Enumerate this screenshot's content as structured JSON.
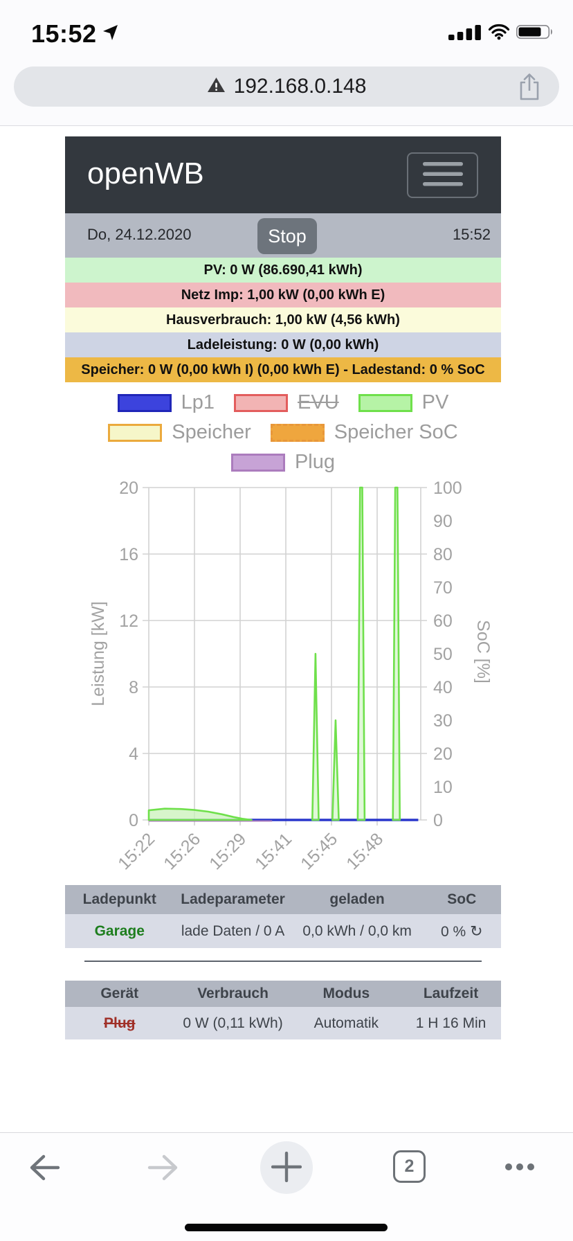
{
  "status_bar": {
    "time": "15:52"
  },
  "address_bar": {
    "url": "192.168.0.148"
  },
  "header": {
    "app_title": "openWB"
  },
  "topbar": {
    "date": "Do, 24.12.2020",
    "stop_label": "Stop",
    "time": "15:52"
  },
  "status_rows": [
    {
      "id": "pv",
      "text": "PV: 0 W (86.690,41 kWh)",
      "bg": "#cdf4cd"
    },
    {
      "id": "netz",
      "text": "Netz Imp: 1,00 kW (0,00 kWh E)",
      "bg": "#f1babe"
    },
    {
      "id": "hausverbrauch",
      "text": "Hausverbrauch: 1,00 kW (4,56 kWh)",
      "bg": "#fbfbdb"
    },
    {
      "id": "ladeleistung",
      "text": "Ladeleistung: 0 W (0,00 kWh)",
      "bg": "#ced4e4"
    },
    {
      "id": "speicher",
      "text": "Speicher: 0 W (0,00 kWh I) (0,00 kWh E) - Ladestand: 0 % SoC",
      "bg": "#edb845"
    }
  ],
  "legend": {
    "rows": [
      [
        {
          "label": "Lp1",
          "fill": "#3c43dd",
          "border": "#2026b8",
          "dashed": false,
          "strike": false
        },
        {
          "label": "EVU",
          "fill": "#f2b4b4",
          "border": "#e35d5d",
          "dashed": false,
          "strike": true
        },
        {
          "label": "PV",
          "fill": "#b6f3a6",
          "border": "#6fe04b",
          "dashed": false,
          "strike": false
        }
      ],
      [
        {
          "label": "Speicher",
          "fill": "#f6f6c9",
          "border": "#ebaa3d",
          "dashed": false,
          "strike": false
        },
        {
          "label": "Speicher SoC",
          "fill": "#efa63e",
          "border": "#e8973a",
          "dashed": true,
          "strike": false
        }
      ],
      [
        {
          "label": "Plug",
          "fill": "#c7a3d6",
          "border": "#ab7cbd",
          "dashed": false,
          "strike": false
        }
      ]
    ]
  },
  "chart_data": {
    "type": "area",
    "title": "",
    "x_ticks": [
      "15:22",
      "15:26",
      "15:29",
      "15:41",
      "15:45",
      "15:48"
    ],
    "y_left": {
      "label": "Leistung [kW]",
      "min": 0,
      "max": 20,
      "ticks": [
        0,
        4,
        8,
        12,
        16,
        20
      ]
    },
    "y_right": {
      "label": "SoC [%]",
      "min": 0,
      "max": 100,
      "ticks": [
        0,
        10,
        20,
        30,
        40,
        50,
        60,
        70,
        80,
        90,
        100
      ]
    },
    "grid_color": "#d2d2d2",
    "label_color": "#a2a2a2",
    "note": "xi = position in x-gridline units (0 = 15:22, 1 = 15:26, 2 = 15:29, 3 = 15:41, 4 = 15:45, 5 = 15:48)",
    "series": [
      {
        "name": "Lp1",
        "kind": "line",
        "color": "#2936cc",
        "value_kw": 0,
        "xi_start": 0,
        "xi_end": 5.9
      },
      {
        "name": "Plug",
        "kind": "line",
        "color": "#ab7cbd",
        "value_kw": 0,
        "xi_start": 0,
        "xi_end": 2.7
      },
      {
        "name": "PV",
        "kind": "area",
        "color": "#6fe04b",
        "fill": "#c9f2ba",
        "hump": [
          [
            0,
            0.58
          ],
          [
            0.35,
            0.68
          ],
          [
            0.7,
            0.66
          ],
          [
            1.0,
            0.6
          ],
          [
            1.3,
            0.5
          ],
          [
            1.6,
            0.34
          ],
          [
            1.85,
            0.18
          ],
          [
            2.05,
            0.07
          ],
          [
            2.25,
            0
          ]
        ],
        "spikes": [
          {
            "xi": 3.65,
            "kw": 10,
            "clipped": false
          },
          {
            "xi": 4.09,
            "kw": 6,
            "clipped": false
          },
          {
            "xi": 4.65,
            "kw": 22,
            "clipped": true
          },
          {
            "xi": 5.42,
            "kw": 22,
            "clipped": true
          }
        ]
      }
    ]
  },
  "tables": [
    {
      "id": "ladepunkt",
      "columns": [
        {
          "label": "Ladepunkt",
          "width": "25%"
        },
        {
          "label": "Ladeparameter",
          "width": "27%"
        },
        {
          "label": "geladen",
          "width": "30%"
        },
        {
          "label": "SoC",
          "width": "18%"
        }
      ],
      "rows": [
        [
          {
            "text": "Garage",
            "style": "green-bold"
          },
          {
            "text": "lade Daten / 0 A"
          },
          {
            "text": "0,0 kWh / 0,0 km"
          },
          {
            "text": "0 %",
            "icon": "refresh"
          }
        ]
      ]
    },
    {
      "id": "geraete",
      "columns": [
        {
          "label": "Gerät",
          "width": "25%"
        },
        {
          "label": "Verbrauch",
          "width": "27%"
        },
        {
          "label": "Modus",
          "width": "25%"
        },
        {
          "label": "Laufzeit",
          "width": "23%"
        }
      ],
      "rows": [
        [
          {
            "text": "Plug",
            "style": "red-strike"
          },
          {
            "text": "0 W (0,11 kWh)"
          },
          {
            "text": "Automatik"
          },
          {
            "text": "1 H 16 Min"
          }
        ]
      ]
    }
  ],
  "toolbar": {
    "tab_count": "2"
  },
  "icons": {
    "refresh": "↻"
  }
}
